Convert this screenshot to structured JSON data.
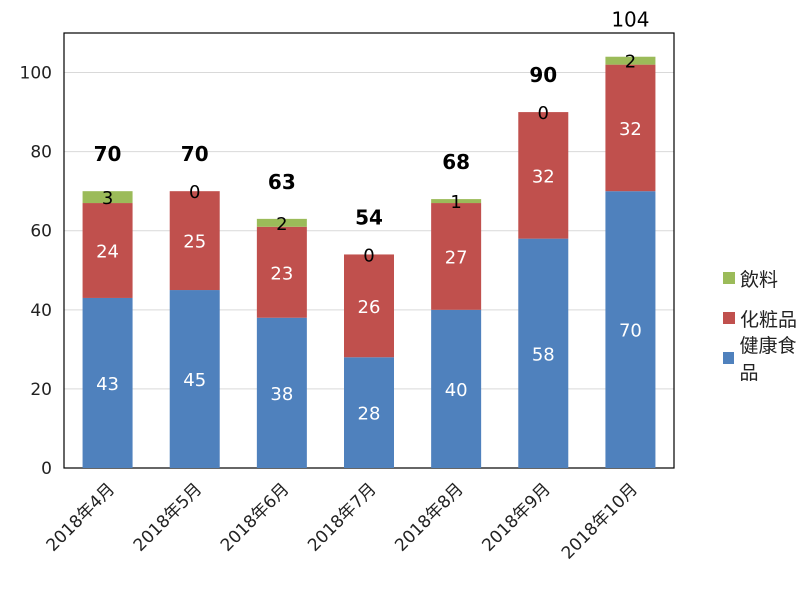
{
  "chart_data": {
    "type": "bar",
    "stacked": true,
    "categories": [
      "2018年4月",
      "2018年5月",
      "2018年6月",
      "2018年7月",
      "2018年8月",
      "2018年9月",
      "2018年10月"
    ],
    "series": [
      {
        "name": "健康食品",
        "color": "#4F81BD",
        "values": [
          43,
          45,
          38,
          28,
          40,
          58,
          70
        ]
      },
      {
        "name": "化粧品",
        "color": "#C0504D",
        "values": [
          24,
          25,
          23,
          26,
          27,
          32,
          32
        ]
      },
      {
        "name": "飲料",
        "color": "#9BBB59",
        "values": [
          3,
          0,
          2,
          0,
          1,
          0,
          2
        ]
      }
    ],
    "totals": [
      70,
      70,
      63,
      54,
      68,
      90,
      104
    ],
    "ylim": [
      0,
      110
    ],
    "yticks": [
      0,
      20,
      40,
      60,
      80,
      100
    ],
    "grid": true,
    "legend_position": "right",
    "title": "",
    "xlabel": "",
    "ylabel": ""
  }
}
